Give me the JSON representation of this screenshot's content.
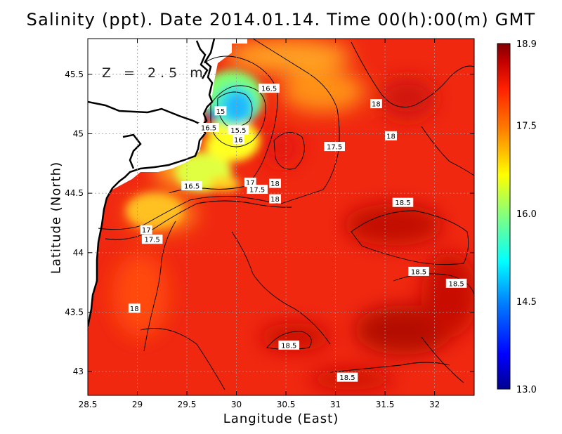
{
  "title": "Salinity (ppt). Date 2014.01.14. Time 00(h):00(m) GMT",
  "depth_label": "Z = 2.5 m",
  "x_axis": {
    "label": "Langitude (East)",
    "ticks": [
      "28.5",
      "29",
      "29.5",
      "30",
      "30.5",
      "31",
      "31.5",
      "32"
    ],
    "range": [
      28.5,
      32.4
    ]
  },
  "y_axis": {
    "label": "Latitude (North)",
    "ticks": [
      "43",
      "43.5",
      "44",
      "44.5",
      "45",
      "45.5"
    ],
    "range": [
      42.8,
      45.8
    ]
  },
  "colorbar": {
    "min": 13.0,
    "max": 18.9,
    "ticks": [
      "18.9",
      "17.5",
      "16.0",
      "14.5",
      "13.0"
    ],
    "colors": [
      "#00008f",
      "#0000ff",
      "#0080ff",
      "#00ffff",
      "#80ff80",
      "#ffff00",
      "#ff8000",
      "#ff2000",
      "#c00000",
      "#800000"
    ]
  },
  "contour_labels": [
    {
      "text": "16.5",
      "lon": 30.33,
      "lat": 45.38
    },
    {
      "text": "15",
      "lon": 29.84,
      "lat": 45.19
    },
    {
      "text": "16.5",
      "lon": 29.72,
      "lat": 45.05
    },
    {
      "text": "15.5",
      "lon": 30.02,
      "lat": 45.03
    },
    {
      "text": "16",
      "lon": 30.02,
      "lat": 44.95
    },
    {
      "text": "18",
      "lon": 31.41,
      "lat": 45.25
    },
    {
      "text": "18",
      "lon": 31.56,
      "lat": 44.98
    },
    {
      "text": "17.5",
      "lon": 30.99,
      "lat": 44.89
    },
    {
      "text": "17",
      "lon": 30.14,
      "lat": 44.59
    },
    {
      "text": "17.5",
      "lon": 30.21,
      "lat": 44.53
    },
    {
      "text": "18",
      "lon": 30.39,
      "lat": 44.58
    },
    {
      "text": "16.5",
      "lon": 29.55,
      "lat": 44.56
    },
    {
      "text": "18",
      "lon": 30.39,
      "lat": 44.45
    },
    {
      "text": "17",
      "lon": 29.09,
      "lat": 44.19
    },
    {
      "text": "17.5",
      "lon": 29.15,
      "lat": 44.11
    },
    {
      "text": "18.5",
      "lon": 31.68,
      "lat": 44.42
    },
    {
      "text": "18.5",
      "lon": 31.84,
      "lat": 43.84
    },
    {
      "text": "18.5",
      "lon": 32.22,
      "lat": 43.74
    },
    {
      "text": "18",
      "lon": 28.97,
      "lat": 43.53
    },
    {
      "text": "18.5",
      "lon": 30.53,
      "lat": 43.22
    },
    {
      "text": "18.5",
      "lon": 31.12,
      "lat": 42.95
    }
  ]
}
